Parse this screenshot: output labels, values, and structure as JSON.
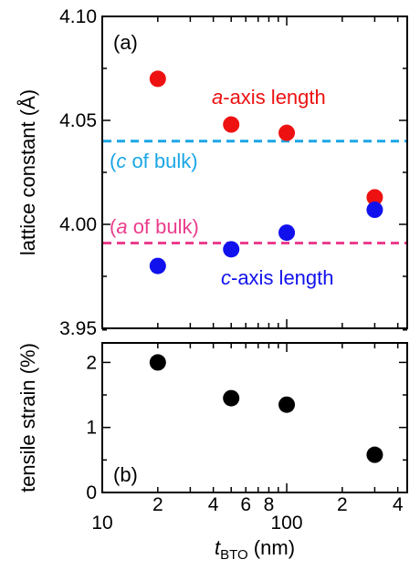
{
  "colors": {
    "a_axis": "#ee1111",
    "c_axis": "#1111ee",
    "strain": "#000000",
    "c_bulk": "#1aa6e6",
    "a_bulk": "#ea3d8c"
  },
  "chart_data": [
    {
      "type": "scatter",
      "panel_label": "(a)",
      "ylabel": "lattice constant (Å)",
      "xscale": "log",
      "xlim": [
        10,
        450
      ],
      "ylim": [
        3.95,
        4.1
      ],
      "yticks": [
        "3.95",
        "4.00",
        "4.05",
        "4.10"
      ],
      "series": [
        {
          "name": "a-axis length",
          "name_italic": "a",
          "name_rest": "-axis length",
          "color": "#ee1111",
          "x": [
            20,
            50,
            100,
            300
          ],
          "y": [
            4.07,
            4.048,
            4.044,
            4.013
          ]
        },
        {
          "name": "c-axis length",
          "name_italic": "c",
          "name_rest": "-axis length",
          "color": "#1111ee",
          "x": [
            20,
            50,
            100,
            300
          ],
          "y": [
            3.98,
            3.988,
            3.996,
            4.007
          ]
        }
      ],
      "reference_lines": [
        {
          "label": "(c of bulk)",
          "label_pre": "(",
          "label_italic": "c",
          "label_post": " of bulk)",
          "y": 4.04,
          "color": "#1aa6e6",
          "style": "dashed"
        },
        {
          "label": "(a of bulk)",
          "label_pre": "(",
          "label_italic": "a",
          "label_post": " of bulk)",
          "y": 3.991,
          "color": "#ea3d8c",
          "style": "dashed"
        }
      ]
    },
    {
      "type": "scatter",
      "panel_label": "(b)",
      "ylabel": "tensile strain (%)",
      "xscale": "log",
      "xlim": [
        10,
        450
      ],
      "ylim": [
        0,
        2.3
      ],
      "yticks": [
        "0",
        "1",
        "2"
      ],
      "xlabel_main": "t",
      "xlabel_sub": "BTO",
      "xlabel_unit": " (nm)",
      "xticks_major": [
        "10",
        "100"
      ],
      "xticks_minor": [
        "2",
        "4",
        "6",
        "8",
        "2",
        "4"
      ],
      "series": [
        {
          "color": "#000000",
          "x": [
            20,
            50,
            100,
            300
          ],
          "y": [
            2.0,
            1.45,
            1.35,
            0.58
          ]
        }
      ]
    }
  ]
}
